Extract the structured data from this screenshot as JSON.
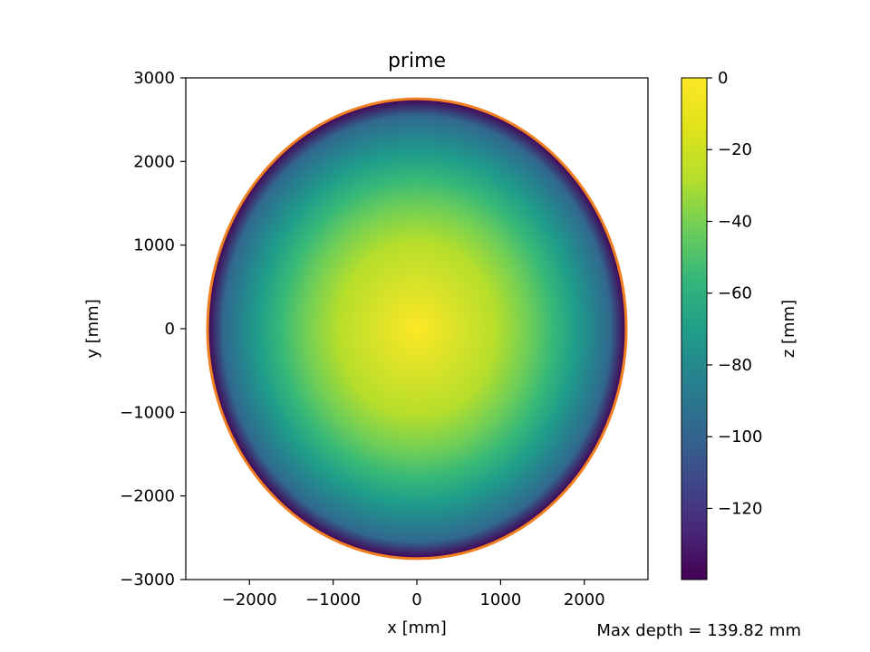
{
  "chart_data": {
    "type": "heatmap",
    "title": "prime",
    "xlabel": "x [mm]",
    "ylabel": "y [mm]",
    "xlim": [
      -2760,
      2760
    ],
    "ylim": [
      -3000,
      3000
    ],
    "xticks": [
      -2000,
      -1000,
      0,
      1000,
      2000
    ],
    "xtick_labels": [
      "−2000",
      "−1000",
      "0",
      "1000",
      "2000"
    ],
    "yticks": [
      3000,
      2000,
      1000,
      0,
      -1000,
      -2000,
      -3000
    ],
    "ytick_labels": [
      "3000",
      "2000",
      "1000",
      "0",
      "−1000",
      "−2000",
      "−3000"
    ],
    "surface": {
      "shape": "ellipse",
      "center": [
        0,
        0
      ],
      "semi_axis_x": 2500,
      "semi_axis_y": 2750,
      "z_center": 0,
      "z_edge": -139.82,
      "profile": "paraboloid"
    },
    "outline_color": "#f07f22",
    "colormap": "viridis",
    "colorbar": {
      "label": "z [mm]",
      "range": [
        -139.82,
        0
      ],
      "ticks": [
        0,
        -20,
        -40,
        -60,
        -80,
        -100,
        -120
      ],
      "tick_labels": [
        "0",
        "−20",
        "−40",
        "−60",
        "−80",
        "−100",
        "−120"
      ]
    },
    "grid": false,
    "annotation": "Max depth = 139.82 mm"
  }
}
